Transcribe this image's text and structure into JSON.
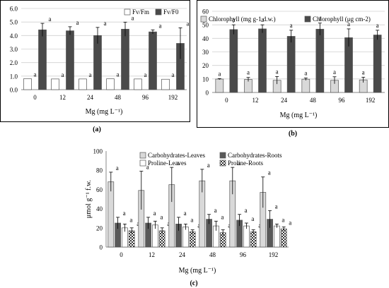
{
  "chart_data": [
    {
      "type": "bar",
      "panel_label": "(a)",
      "categories": [
        "0",
        "12",
        "24",
        "48",
        "96",
        "192"
      ],
      "xlabel": "Mg (mg L⁻¹)",
      "ylabel": "",
      "ylim": [
        0,
        6
      ],
      "yticks": [
        "0.0",
        "1.0",
        "2.0",
        "3.0",
        "4.0",
        "5.0",
        "6.0"
      ],
      "grid": true,
      "legend_position": "top-right",
      "series": [
        {
          "name": "Fv/Fm",
          "color": "#ffffff",
          "pattern": "solid",
          "values": [
            0.81,
            0.79,
            0.79,
            0.8,
            0.79,
            0.77
          ],
          "errors": [
            0,
            0,
            0,
            0,
            0,
            0
          ],
          "labels": [
            "a",
            "a",
            "a",
            "a",
            "a",
            "a"
          ]
        },
        {
          "name": "Fv/F0",
          "color": "#4a4a4a",
          "pattern": "solid",
          "values": [
            4.42,
            4.35,
            4.0,
            4.47,
            4.27,
            3.42
          ],
          "errors": [
            0.48,
            0.3,
            0.6,
            0.52,
            0.15,
            1.15
          ],
          "labels": [
            "a",
            "a",
            "a",
            "a",
            "a",
            "a"
          ]
        }
      ]
    },
    {
      "type": "bar",
      "panel_label": "(b)",
      "categories": [
        "0",
        "12",
        "24",
        "48",
        "96",
        "192"
      ],
      "xlabel": "Mg (mg L⁻¹)",
      "ylabel": "",
      "ylim": [
        0,
        60
      ],
      "yticks": [
        "0",
        "10",
        "20",
        "30",
        "40",
        "50",
        "60"
      ],
      "grid": true,
      "legend_position": "top",
      "series": [
        {
          "name": "Chlorophyll (mg g-1 d.w.)",
          "color": "#d9d9d9",
          "pattern": "solid",
          "values": [
            9.9,
            9.6,
            9.0,
            9.8,
            9.0,
            9.3
          ],
          "errors": [
            0.4,
            1.5,
            2.8,
            0.9,
            2.6,
            2.0
          ],
          "labels": [
            "a",
            "a",
            "a",
            "a",
            "a",
            "a"
          ]
        },
        {
          "name": "Chlorophyll (μg cm-2)",
          "color": "#4a4a4a",
          "pattern": "solid",
          "values": [
            46.5,
            47.0,
            41.5,
            46.8,
            40.5,
            42.5
          ],
          "errors": [
            3.5,
            3.0,
            4.5,
            4.5,
            6.5,
            3.5
          ],
          "labels": [
            "a",
            "a",
            "a",
            "a",
            "a",
            "a"
          ]
        }
      ]
    },
    {
      "type": "bar",
      "panel_label": "(c)",
      "categories": [
        "0",
        "12",
        "24",
        "48",
        "96",
        "192"
      ],
      "xlabel": "Mg (mg L⁻¹)",
      "ylabel": "μmol g⁻¹ f.w.",
      "ylim": [
        0,
        100
      ],
      "yticks": [
        "0",
        "20",
        "40",
        "60",
        "80",
        "100"
      ],
      "grid": false,
      "legend_position": "top",
      "series": [
        {
          "name": "Carbohydrates-Leaves",
          "color": "#d9d9d9",
          "pattern": "solid",
          "values": [
            68,
            59,
            65,
            69,
            69,
            57
          ],
          "errors": [
            10,
            20,
            18,
            12,
            14,
            16
          ],
          "labels": [
            "a",
            "a",
            "a",
            "a",
            "a",
            "a"
          ]
        },
        {
          "name": "Carbohydrates-Roots",
          "color": "#595959",
          "pattern": "solid",
          "values": [
            25,
            25,
            24,
            29,
            28,
            29
          ],
          "errors": [
            6,
            6,
            7,
            5,
            6,
            9
          ],
          "labels": [
            "a",
            "a",
            "a",
            "a",
            "a",
            "a"
          ]
        },
        {
          "name": "Proline-Leaves",
          "color": "#ffffff",
          "pattern": "solid",
          "values": [
            20,
            23,
            21,
            22,
            22,
            22
          ],
          "errors": [
            4,
            4,
            3,
            5,
            3,
            2
          ],
          "labels": [
            "a",
            "a",
            "a",
            "a",
            "a",
            "a"
          ]
        },
        {
          "name": "Proline-Roots",
          "color": "#9a9a9a",
          "pattern": "checker",
          "values": [
            17,
            17,
            16,
            15,
            16,
            19
          ],
          "errors": [
            3,
            3,
            2,
            3,
            2,
            2
          ],
          "labels": [
            "a",
            "a",
            "a",
            "a",
            "a",
            "a"
          ]
        }
      ]
    }
  ]
}
